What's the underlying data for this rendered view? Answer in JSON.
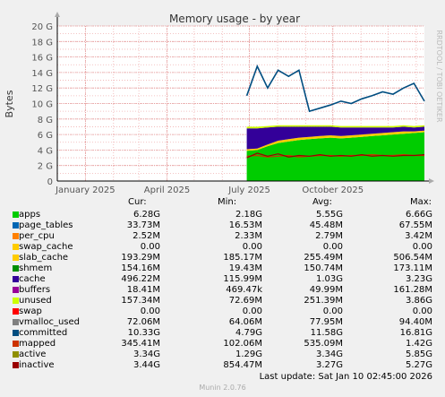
{
  "chart_data": {
    "type": "area",
    "title": "Memory usage - by year",
    "ylabel": "Bytes",
    "watermark": "RRDTOOL / TOBI OETIKER",
    "ylim": [
      0,
      20
    ],
    "y_ticks": [
      "0",
      "2 G",
      "4 G",
      "6 G",
      "8 G",
      "10 G",
      "12 G",
      "14 G",
      "16 G",
      "18 G",
      "20 G"
    ],
    "x_ticks": [
      "January 2025",
      "April 2025",
      "July 2025",
      "October 2025"
    ],
    "x_range": [
      "2024-12-01",
      "2026-01-10"
    ],
    "data_start": "2025-06-28",
    "stack_series": [
      {
        "name": "apps",
        "color": "#00cc00",
        "values": [
          3.9,
          4.0,
          4.5,
          4.9,
          5.1,
          5.3,
          5.4,
          5.5,
          5.6,
          5.5,
          5.6,
          5.7,
          5.8,
          5.9,
          6.0,
          6.1,
          6.2,
          6.3
        ]
      },
      {
        "name": "slab_cache",
        "color": "#ffcc00",
        "values": [
          0.2,
          0.2,
          0.2,
          0.3,
          0.3,
          0.3,
          0.3,
          0.3,
          0.3,
          0.3,
          0.3,
          0.3,
          0.3,
          0.3,
          0.3,
          0.3,
          0.2,
          0.2
        ]
      },
      {
        "name": "cache",
        "color": "#330099",
        "values": [
          2.7,
          2.6,
          2.2,
          1.8,
          1.6,
          1.4,
          1.3,
          1.2,
          1.1,
          1.1,
          1.0,
          0.9,
          0.8,
          0.7,
          0.6,
          0.6,
          0.5,
          0.5
        ]
      },
      {
        "name": "unused",
        "color": "#ccff00",
        "values": [
          0.2,
          0.2,
          0.2,
          0.2,
          0.2,
          0.2,
          0.2,
          0.2,
          0.2,
          0.2,
          0.2,
          0.2,
          0.2,
          0.2,
          0.2,
          0.2,
          0.2,
          0.2
        ]
      }
    ],
    "line_series": [
      {
        "name": "committed",
        "color": "#004d80",
        "values": [
          11.0,
          14.8,
          12.0,
          14.3,
          13.5,
          14.3,
          9.0,
          9.4,
          9.8,
          10.3,
          10.0,
          10.6,
          11.0,
          11.5,
          11.2,
          12.0,
          12.6,
          10.3
        ]
      },
      {
        "name": "active",
        "color": "#cc3300",
        "values": [
          3.2,
          3.3,
          3.1,
          3.2,
          3.3,
          3.1,
          3.2,
          3.3,
          3.3,
          3.2,
          3.3,
          3.3,
          3.4,
          3.3,
          3.3,
          3.4,
          3.3,
          3.3
        ]
      },
      {
        "name": "inactive",
        "color": "#990000",
        "values": [
          3.0,
          3.6,
          3.2,
          3.5,
          3.1,
          3.3,
          3.2,
          3.4,
          3.2,
          3.3,
          3.2,
          3.4,
          3.2,
          3.3,
          3.2,
          3.3,
          3.3,
          3.4
        ]
      }
    ],
    "legend_headers": {
      "cur": "Cur:",
      "min": "Min:",
      "avg": "Avg:",
      "max": "Max:"
    },
    "legend": [
      {
        "name": "apps",
        "color": "#00cc00",
        "cur": "6.28G",
        "min": "2.18G",
        "avg": "5.55G",
        "max": "6.66G"
      },
      {
        "name": "page_tables",
        "color": "#0066b3",
        "cur": "33.73M",
        "min": "16.53M",
        "avg": "45.48M",
        "max": "67.55M"
      },
      {
        "name": "per_cpu",
        "color": "#ff8000",
        "cur": "2.52M",
        "min": "2.33M",
        "avg": "2.79M",
        "max": "3.42M"
      },
      {
        "name": "swap_cache",
        "color": "#ffcc00",
        "cur": "0.00",
        "min": "0.00",
        "avg": "0.00",
        "max": "0.00"
      },
      {
        "name": "slab_cache",
        "color": "#ffcc00",
        "cur": "193.29M",
        "min": "185.17M",
        "avg": "255.49M",
        "max": "506.54M"
      },
      {
        "name": "shmem",
        "color": "#008f00",
        "cur": "154.16M",
        "min": "19.43M",
        "avg": "150.74M",
        "max": "173.11M"
      },
      {
        "name": "cache",
        "color": "#330099",
        "cur": "496.22M",
        "min": "115.99M",
        "avg": "1.03G",
        "max": "3.23G"
      },
      {
        "name": "buffers",
        "color": "#990099",
        "cur": "18.41M",
        "min": "469.47k",
        "avg": "49.99M",
        "max": "161.28M"
      },
      {
        "name": "unused",
        "color": "#ccff00",
        "cur": "157.34M",
        "min": "72.69M",
        "avg": "251.39M",
        "max": "3.86G"
      },
      {
        "name": "swap",
        "color": "#ff0000",
        "cur": "0.00",
        "min": "0.00",
        "avg": "0.00",
        "max": "0.00"
      },
      {
        "name": "vmalloc_used",
        "color": "#808080",
        "cur": "72.06M",
        "min": "64.06M",
        "avg": "77.95M",
        "max": "94.40M"
      },
      {
        "name": "committed",
        "color": "#004d80",
        "cur": "10.33G",
        "min": "4.79G",
        "avg": "11.58G",
        "max": "16.81G"
      },
      {
        "name": "mapped",
        "color": "#cc3300",
        "cur": "345.41M",
        "min": "102.06M",
        "avg": "535.09M",
        "max": "1.42G"
      },
      {
        "name": "active",
        "color": "#8f8f00",
        "cur": "3.34G",
        "min": "1.29G",
        "avg": "3.34G",
        "max": "5.85G"
      },
      {
        "name": "inactive",
        "color": "#990000",
        "cur": "3.44G",
        "min": "854.47M",
        "avg": "3.27G",
        "max": "5.27G"
      }
    ]
  },
  "footer": {
    "last_update": "Last update: Sat Jan 10 02:45:00 2026",
    "munin": "Munin 2.0.76"
  }
}
